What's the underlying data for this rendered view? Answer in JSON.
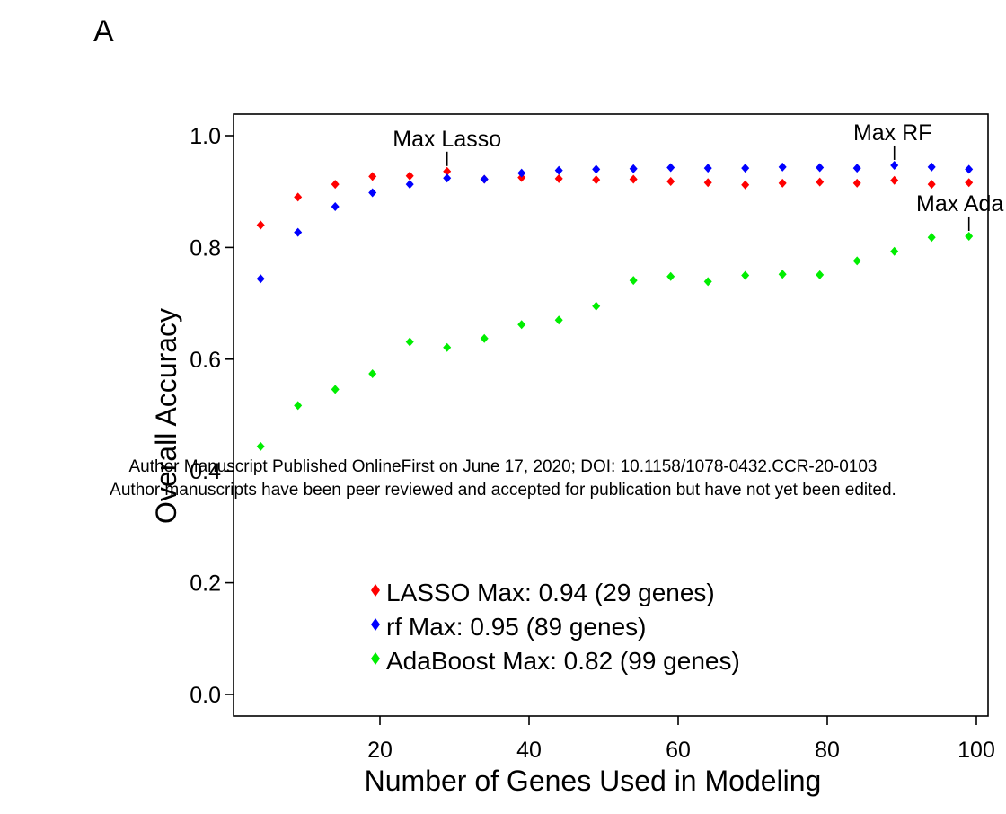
{
  "panel_label": "A",
  "watermark": {
    "line1": "Author Manuscript Published OnlineFirst on June 17, 2020; DOI: 10.1158/1078-0432.CCR-20-0103",
    "line2": "Author manuscripts have been peer reviewed and accepted for publication but have not yet been edited."
  },
  "chart_data": {
    "type": "scatter",
    "title": "",
    "xlabel": "Number of Genes Used in Modeling",
    "ylabel": "Overall Accuracy",
    "xlim": [
      0,
      100
    ],
    "ylim": [
      0,
      1.0
    ],
    "x_ticks": [
      20,
      40,
      60,
      80,
      100
    ],
    "x_tick_labels": [
      "20",
      "40",
      "60",
      "80",
      "100"
    ],
    "y_ticks": [
      0.0,
      0.2,
      0.4,
      0.6,
      0.8,
      1.0
    ],
    "y_tick_labels": [
      "0.0",
      "0.2",
      "0.4",
      "0.6",
      "0.8",
      "1.0"
    ],
    "grid": false,
    "legend_position": "bottom-center",
    "x": [
      4,
      9,
      14,
      19,
      24,
      29,
      34,
      39,
      44,
      49,
      54,
      59,
      64,
      69,
      74,
      79,
      84,
      89,
      94,
      99
    ],
    "series": [
      {
        "name": "LASSO Max: 0.94 (29 genes)",
        "color": "#ff0000",
        "values": [
          0.84,
          0.89,
          0.913,
          0.927,
          0.928,
          0.936,
          0.922,
          0.925,
          0.923,
          0.921,
          0.922,
          0.918,
          0.916,
          0.912,
          0.915,
          0.917,
          0.915,
          0.92,
          0.913,
          0.916
        ]
      },
      {
        "name": "rf Max: 0.95 (89 genes)",
        "color": "#0000ff",
        "values": [
          0.744,
          0.827,
          0.873,
          0.898,
          0.913,
          0.924,
          0.922,
          0.933,
          0.938,
          0.94,
          0.941,
          0.943,
          0.942,
          0.942,
          0.944,
          0.943,
          0.942,
          0.947,
          0.944,
          0.94
        ]
      },
      {
        "name": "AdaBoost Max: 0.82 (99 genes)",
        "color": "#00ee00",
        "values": [
          0.444,
          0.517,
          0.546,
          0.574,
          0.631,
          0.621,
          0.637,
          0.662,
          0.67,
          0.695,
          0.741,
          0.748,
          0.739,
          0.75,
          0.752,
          0.751,
          0.776,
          0.793,
          0.818,
          0.82
        ]
      }
    ],
    "annotations": [
      {
        "text": "Max Lasso",
        "x": 29,
        "y": 0.936
      },
      {
        "text": "Max RF",
        "x": 89,
        "y": 0.947
      },
      {
        "text": "Max Ada",
        "x": 99,
        "y": 0.82
      }
    ]
  }
}
